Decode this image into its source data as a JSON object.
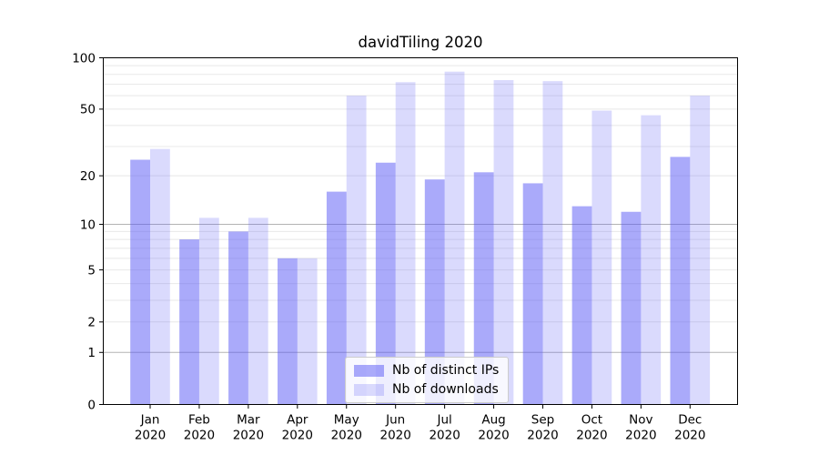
{
  "chart_data": {
    "type": "bar",
    "title": "davidTiling 2020",
    "categories": [
      {
        "month": "Jan",
        "year": "2020"
      },
      {
        "month": "Feb",
        "year": "2020"
      },
      {
        "month": "Mar",
        "year": "2020"
      },
      {
        "month": "Apr",
        "year": "2020"
      },
      {
        "month": "May",
        "year": "2020"
      },
      {
        "month": "Jun",
        "year": "2020"
      },
      {
        "month": "Jul",
        "year": "2020"
      },
      {
        "month": "Aug",
        "year": "2020"
      },
      {
        "month": "Sep",
        "year": "2020"
      },
      {
        "month": "Oct",
        "year": "2020"
      },
      {
        "month": "Nov",
        "year": "2020"
      },
      {
        "month": "Dec",
        "year": "2020"
      }
    ],
    "series": [
      {
        "name": "Nb of distinct IPs",
        "color": "rgba(85,85,245,0.5)",
        "values": [
          25,
          8,
          9,
          6,
          16,
          24,
          19,
          21,
          18,
          13,
          12,
          26
        ]
      },
      {
        "name": "Nb of downloads",
        "color": "rgba(85,85,245,0.22)",
        "values": [
          29,
          11,
          11,
          6,
          60,
          72,
          83,
          74,
          73,
          49,
          46,
          60
        ]
      }
    ],
    "xlabel": "",
    "ylabel": "",
    "yscale": "log1p",
    "ylim": [
      0,
      100
    ],
    "yticks": [
      100,
      50,
      20,
      10,
      5,
      2,
      1,
      0
    ],
    "gridlines": {
      "major": [
        1,
        10
      ],
      "minor": [
        2,
        3,
        4,
        5,
        6,
        7,
        8,
        9,
        20,
        30,
        40,
        50,
        60,
        70,
        80,
        90
      ],
      "major_color": "#b3b3b3",
      "minor_color": "#e8e8e8"
    },
    "axis_color": "#000000",
    "legend_position": "lower center",
    "grid": true
  }
}
